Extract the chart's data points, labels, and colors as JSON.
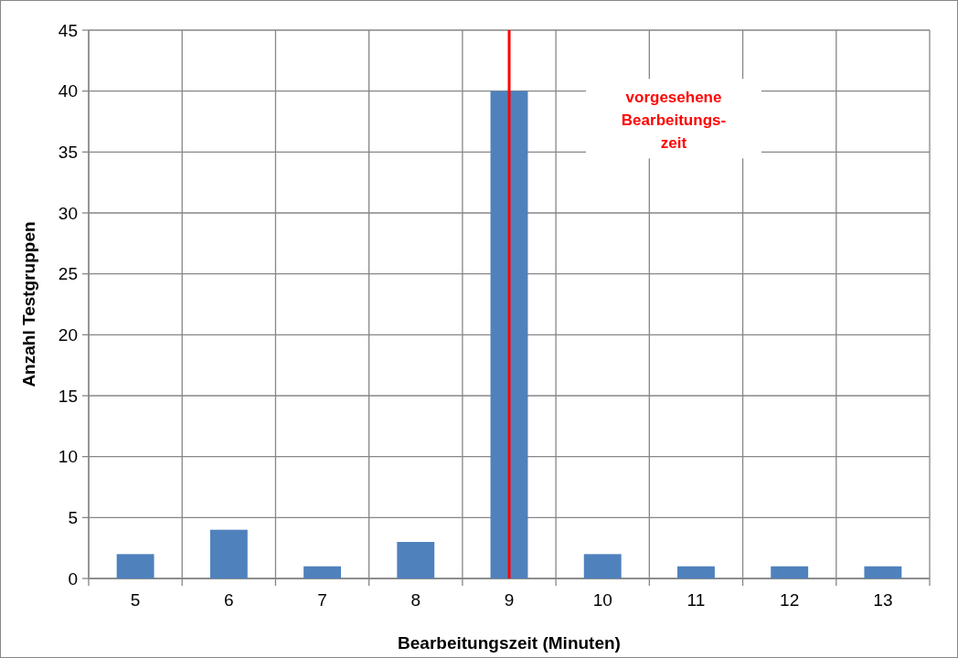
{
  "chart_data": {
    "type": "bar",
    "xlabel": "Bearbeitungszeit (Minuten)",
    "ylabel": "Anzahl Testgruppen",
    "categories": [
      "5",
      "6",
      "7",
      "8",
      "9",
      "10",
      "11",
      "12",
      "13"
    ],
    "values": [
      2,
      4,
      1,
      3,
      40,
      2,
      1,
      1,
      1
    ],
    "color": "#4f81bd",
    "ylim": [
      0,
      45
    ],
    "yticks": [
      0,
      5,
      10,
      15,
      20,
      25,
      30,
      35,
      40,
      45
    ],
    "grid": true,
    "ref_lines": [
      {
        "axis": "x",
        "value": "9",
        "label": "vorgesehene Bearbeitungs- zeit",
        "color": "#ff0000",
        "line_style": "solid"
      }
    ]
  }
}
